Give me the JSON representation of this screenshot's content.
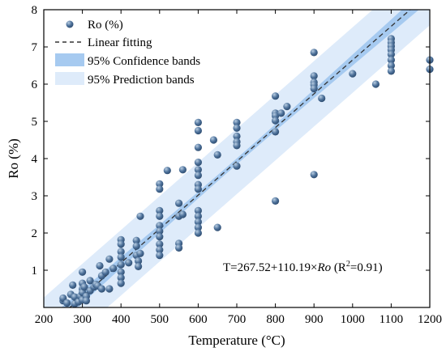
{
  "chart_data": {
    "type": "scatter",
    "xlabel": "Temperature (°C)",
    "ylabel": "Ro (%)",
    "xlim": [
      200,
      1200
    ],
    "ylim": [
      0,
      8
    ],
    "xticks": [
      200,
      300,
      400,
      500,
      600,
      700,
      800,
      900,
      1000,
      1100,
      1200
    ],
    "yticks": [
      1,
      2,
      3,
      4,
      5,
      6,
      7,
      8
    ],
    "legend_position": "top-left",
    "legend": {
      "points": "Ro (%)",
      "fit": "Linear fitting",
      "confidence": "95% Confidence bands",
      "prediction": "95% Prediction bands"
    },
    "annotation": {
      "prefix": "T=267.52+110.19×",
      "italic": "Ro",
      "r_open": " (R",
      "r_sup": "2",
      "r_close": "=0.91)"
    },
    "fit": {
      "intercept": 267.52,
      "slope": 110.19
    },
    "confidence_halfwidth_ro": [
      0.22,
      0.08,
      0.22
    ],
    "prediction_halfwidth_ro": 0.88,
    "colors": {
      "point": "#3f6288",
      "point_highlight": "#b8cde2",
      "confidence": "#a6caf0",
      "prediction": "#deebfa",
      "fit_line": "#333333"
    },
    "series": [
      {
        "name": "Ro (%)",
        "points": [
          [
            250,
            0.18
          ],
          [
            250,
            0.25
          ],
          [
            260,
            0.12
          ],
          [
            270,
            0.35
          ],
          [
            275,
            0.6
          ],
          [
            280,
            0.1
          ],
          [
            280,
            0.28
          ],
          [
            290,
            0.15
          ],
          [
            295,
            0.3
          ],
          [
            300,
            0.95
          ],
          [
            300,
            0.65
          ],
          [
            300,
            0.5
          ],
          [
            300,
            0.4
          ],
          [
            300,
            0.2
          ],
          [
            305,
            0.55
          ],
          [
            310,
            0.3
          ],
          [
            310,
            0.18
          ],
          [
            320,
            0.72
          ],
          [
            320,
            0.45
          ],
          [
            330,
            0.55
          ],
          [
            335,
            0.62
          ],
          [
            340,
            0.58
          ],
          [
            345,
            1.12
          ],
          [
            350,
            0.85
          ],
          [
            350,
            0.5
          ],
          [
            360,
            0.95
          ],
          [
            370,
            1.3
          ],
          [
            370,
            0.5
          ],
          [
            380,
            1.05
          ],
          [
            400,
            1.82
          ],
          [
            400,
            1.7
          ],
          [
            400,
            1.5
          ],
          [
            400,
            1.35
          ],
          [
            400,
            1.15
          ],
          [
            400,
            0.95
          ],
          [
            400,
            0.8
          ],
          [
            400,
            0.65
          ],
          [
            420,
            1.2
          ],
          [
            440,
            1.8
          ],
          [
            440,
            1.65
          ],
          [
            440,
            1.4
          ],
          [
            445,
            1.25
          ],
          [
            445,
            1.1
          ],
          [
            450,
            2.45
          ],
          [
            450,
            1.45
          ],
          [
            500,
            3.32
          ],
          [
            500,
            3.18
          ],
          [
            500,
            2.6
          ],
          [
            500,
            2.45
          ],
          [
            500,
            2.2
          ],
          [
            500,
            2.05
          ],
          [
            500,
            1.9
          ],
          [
            500,
            1.7
          ],
          [
            500,
            1.55
          ],
          [
            500,
            1.4
          ],
          [
            520,
            3.68
          ],
          [
            550,
            2.8
          ],
          [
            550,
            2.45
          ],
          [
            550,
            1.72
          ],
          [
            550,
            1.6
          ],
          [
            560,
            3.7
          ],
          [
            560,
            2.5
          ],
          [
            600,
            4.97
          ],
          [
            600,
            4.75
          ],
          [
            600,
            4.3
          ],
          [
            600,
            3.9
          ],
          [
            600,
            3.7
          ],
          [
            600,
            3.55
          ],
          [
            600,
            3.3
          ],
          [
            600,
            3.18
          ],
          [
            600,
            2.6
          ],
          [
            600,
            2.45
          ],
          [
            600,
            2.3
          ],
          [
            600,
            2.15
          ],
          [
            600,
            2.0
          ],
          [
            640,
            4.5
          ],
          [
            650,
            4.1
          ],
          [
            650,
            2.15
          ],
          [
            700,
            4.97
          ],
          [
            700,
            4.82
          ],
          [
            700,
            4.6
          ],
          [
            700,
            4.45
          ],
          [
            700,
            4.35
          ],
          [
            700,
            3.8
          ],
          [
            800,
            5.68
          ],
          [
            800,
            5.22
          ],
          [
            800,
            5.15
          ],
          [
            800,
            5.02
          ],
          [
            800,
            4.72
          ],
          [
            800,
            2.86
          ],
          [
            815,
            5.22
          ],
          [
            830,
            5.4
          ],
          [
            900,
            6.85
          ],
          [
            900,
            6.22
          ],
          [
            900,
            6.05
          ],
          [
            900,
            5.98
          ],
          [
            900,
            5.88
          ],
          [
            900,
            3.57
          ],
          [
            920,
            5.62
          ],
          [
            1000,
            6.28
          ],
          [
            1060,
            6.0
          ],
          [
            1100,
            7.22
          ],
          [
            1100,
            7.12
          ],
          [
            1100,
            7.02
          ],
          [
            1100,
            6.92
          ],
          [
            1100,
            6.8
          ],
          [
            1100,
            6.65
          ],
          [
            1100,
            6.5
          ],
          [
            1100,
            6.35
          ],
          [
            1200,
            6.65
          ],
          [
            1200,
            6.4
          ]
        ]
      }
    ]
  }
}
